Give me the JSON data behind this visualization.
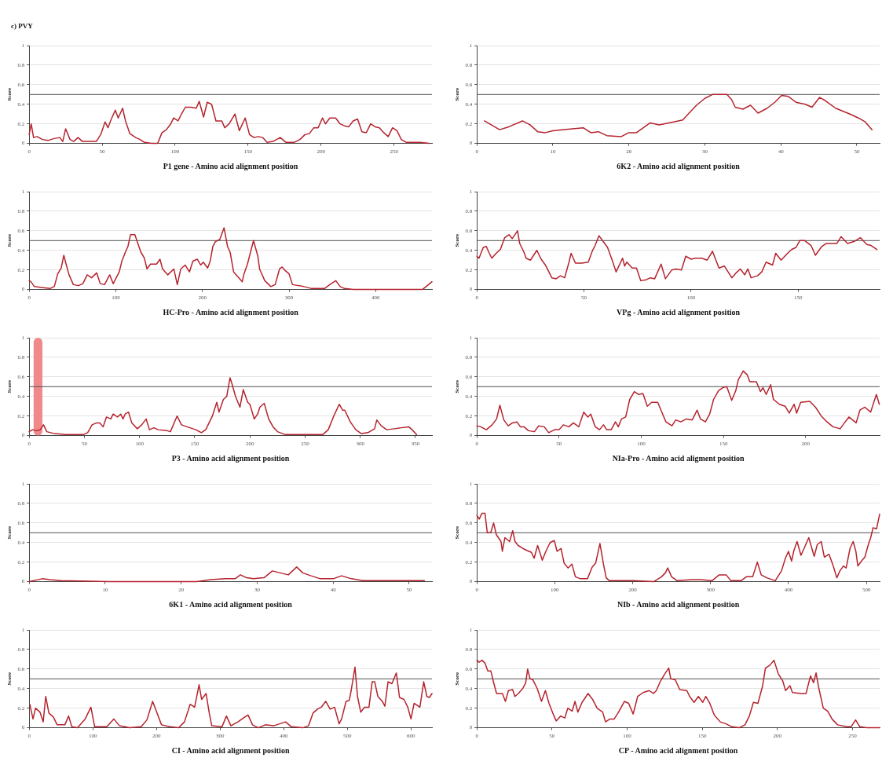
{
  "chart_data": [
    {
      "type": "line",
      "title": "c) PVY",
      "xlabel": "P1 gene - Amino acid alignment position",
      "ylabel": "Score",
      "color": "#b5232d",
      "grid": "y",
      "xlim": [
        0,
        276
      ],
      "xticks": [
        0,
        50,
        100,
        150,
        200,
        250
      ],
      "ylim": [
        0,
        1
      ],
      "yticks": [
        0,
        0.2,
        0.4,
        0.6,
        0.8,
        1
      ],
      "ref_lines": [
        {
          "axis": "y",
          "value": 0.5,
          "color": "#505050"
        }
      ],
      "x": [
        0,
        1.4,
        3,
        5.5,
        9,
        13,
        17,
        21,
        23,
        25,
        28,
        30.5,
        33.5,
        36.5,
        41,
        46,
        49,
        52,
        54,
        56,
        59,
        61,
        64,
        66,
        69,
        73,
        76,
        79,
        84,
        88,
        91,
        94,
        97,
        99,
        102,
        104,
        107,
        110.5,
        114.5,
        116.5,
        119.5,
        122,
        125,
        128,
        132,
        134,
        137,
        141,
        144,
        148,
        151,
        154,
        157,
        160,
        163,
        167,
        172,
        176,
        181.5,
        185.5,
        189,
        192,
        195,
        198,
        201,
        203,
        206,
        210,
        213,
        216,
        219,
        222,
        225,
        228,
        231,
        234,
        237,
        240,
        243,
        246,
        249,
        252,
        255,
        258.5,
        262,
        268,
        274
      ],
      "values": [
        0.09,
        0.2,
        0.06,
        0.07,
        0.04,
        0.03,
        0.05,
        0.06,
        0.02,
        0.15,
        0.04,
        0.02,
        0.06,
        0.02,
        0.02,
        0.02,
        0.09,
        0.22,
        0.16,
        0.24,
        0.34,
        0.26,
        0.36,
        0.23,
        0.1,
        0.06,
        0.04,
        0.01,
        0,
        0,
        0.11,
        0.14,
        0.2,
        0.26,
        0.23,
        0.29,
        0.37,
        0.37,
        0.36,
        0.43,
        0.27,
        0.42,
        0.4,
        0.23,
        0.23,
        0.16,
        0.2,
        0.3,
        0.13,
        0.26,
        0.09,
        0.06,
        0.07,
        0.06,
        0.01,
        0.02,
        0.06,
        0.01,
        0.01,
        0.04,
        0.09,
        0.1,
        0.16,
        0.16,
        0.26,
        0.2,
        0.26,
        0.26,
        0.2,
        0.18,
        0.17,
        0.23,
        0.25,
        0.12,
        0.11,
        0.2,
        0.17,
        0.16,
        0.11,
        0.07,
        0.16,
        0.13,
        0.04,
        0.01,
        0.01,
        0.01,
        0
      ]
    },
    {
      "type": "line",
      "xlabel": "6K2 - Amino acid alignment position",
      "ylabel": "Score",
      "color": "#b5232d",
      "grid": "y",
      "xlim": [
        0,
        53
      ],
      "xticks": [
        0,
        10,
        20,
        30,
        40,
        50
      ],
      "ylim": [
        0,
        1
      ],
      "yticks": [
        0,
        0.2,
        0.4,
        0.6,
        0.8,
        1
      ],
      "ref_lines": [
        {
          "axis": "y",
          "value": 0.5,
          "color": "#505050"
        }
      ],
      "x": [
        1,
        3,
        4.2,
        6,
        7,
        8,
        9,
        10,
        11.2,
        14,
        15,
        16,
        17.1,
        19,
        20,
        21,
        22.8,
        24,
        25.9,
        27.1,
        27.8,
        28.9,
        30,
        31,
        32.9,
        33.5,
        34,
        35,
        36,
        37,
        38.2,
        39.2,
        40.1,
        41,
        42,
        43.2,
        44.1,
        45.1,
        45.8,
        47.2,
        49.1,
        50.2,
        51.1,
        52
      ],
      "values": [
        0.23,
        0.14,
        0.17,
        0.23,
        0.19,
        0.12,
        0.11,
        0.13,
        0.14,
        0.16,
        0.11,
        0.12,
        0.08,
        0.07,
        0.11,
        0.11,
        0.21,
        0.19,
        0.22,
        0.24,
        0.3,
        0.39,
        0.46,
        0.5,
        0.5,
        0.45,
        0.37,
        0.35,
        0.39,
        0.31,
        0.36,
        0.42,
        0.49,
        0.48,
        0.42,
        0.4,
        0.37,
        0.47,
        0.44,
        0.36,
        0.3,
        0.26,
        0.22,
        0.14
      ]
    },
    {
      "type": "line",
      "xlabel": "HC-Pro - Amino acid alignment position",
      "ylabel": "Score",
      "color": "#b5232d",
      "grid": "y",
      "xlim": [
        0,
        465
      ],
      "xticks": [
        0,
        100,
        200,
        300,
        400
      ],
      "ylim": [
        0,
        1
      ],
      "yticks": [
        0,
        0.2,
        0.4,
        0.6,
        0.8,
        1
      ],
      "ref_lines": [
        {
          "axis": "y",
          "value": 0.5,
          "color": "#505050"
        }
      ],
      "x": [
        0,
        2,
        6,
        14,
        24,
        29,
        33,
        37,
        40,
        42,
        46,
        51,
        57,
        62,
        67,
        72,
        78,
        82,
        87,
        93,
        97,
        104,
        107,
        111,
        114,
        117,
        122,
        129,
        133,
        136,
        140,
        147,
        151,
        154,
        160,
        167,
        171,
        175,
        180,
        185,
        189,
        194,
        198,
        201,
        206,
        209,
        212,
        215,
        220,
        225,
        229,
        232,
        236,
        241,
        246,
        248,
        252,
        259,
        264,
        266,
        272,
        279,
        284,
        289,
        292,
        296,
        300,
        304,
        311,
        317,
        326,
        341,
        347,
        354,
        359,
        364,
        374,
        394,
        427,
        454,
        461,
        465
      ],
      "values": [
        0.09,
        0.08,
        0.03,
        0.02,
        0.01,
        0.03,
        0.16,
        0.22,
        0.35,
        0.28,
        0.15,
        0.05,
        0.04,
        0.06,
        0.15,
        0.12,
        0.17,
        0.06,
        0.05,
        0.15,
        0.06,
        0.18,
        0.29,
        0.38,
        0.44,
        0.56,
        0.56,
        0.38,
        0.32,
        0.21,
        0.26,
        0.26,
        0.31,
        0.21,
        0.15,
        0.21,
        0.05,
        0.21,
        0.25,
        0.18,
        0.29,
        0.31,
        0.25,
        0.28,
        0.22,
        0.29,
        0.44,
        0.49,
        0.51,
        0.63,
        0.44,
        0.38,
        0.18,
        0.13,
        0.08,
        0.16,
        0.26,
        0.5,
        0.34,
        0.21,
        0.09,
        0.03,
        0.05,
        0.21,
        0.23,
        0.19,
        0.16,
        0.05,
        0.04,
        0.03,
        0.01,
        0.01,
        0.05,
        0.09,
        0.03,
        0.01,
        0,
        0,
        0,
        0,
        0.05,
        0.08
      ]
    },
    {
      "type": "line",
      "xlabel": "VPg - Amino acid alignment position",
      "ylabel": "Score",
      "color": "#b5232d",
      "grid": "y",
      "xlim": [
        0,
        188
      ],
      "xticks": [
        0,
        50,
        100,
        150
      ],
      "ylim": [
        0,
        1
      ],
      "yticks": [
        0,
        0.2,
        0.4,
        0.6,
        0.8,
        1
      ],
      "ref_lines": [
        {
          "axis": "y",
          "value": 0.5,
          "color": "#505050"
        }
      ],
      "x": [
        0,
        1,
        3,
        4.4,
        5.8,
        7,
        9,
        11,
        13,
        15,
        16.5,
        19,
        20,
        22,
        23,
        25,
        28,
        30,
        32,
        35,
        37,
        39,
        41,
        43,
        44,
        46,
        49,
        52,
        54,
        55,
        57,
        59,
        61,
        63,
        65,
        68,
        69,
        70,
        72.5,
        74.5,
        76.5,
        79,
        81,
        83,
        86,
        88,
        91,
        93,
        95.5,
        97.5,
        100,
        102,
        105,
        107.5,
        110,
        113,
        115.5,
        119,
        121,
        123,
        125,
        126.5,
        128,
        131,
        133,
        135,
        138,
        139.5,
        142,
        145,
        147,
        149,
        150.7,
        153,
        156,
        158,
        161,
        163,
        168,
        170,
        173,
        176,
        179,
        182,
        184,
        186.7
      ],
      "values": [
        0.34,
        0.32,
        0.43,
        0.44,
        0.37,
        0.32,
        0.37,
        0.41,
        0.53,
        0.56,
        0.52,
        0.6,
        0.47,
        0.38,
        0.32,
        0.3,
        0.4,
        0.31,
        0.25,
        0.12,
        0.11,
        0.14,
        0.12,
        0.28,
        0.37,
        0.27,
        0.27,
        0.28,
        0.4,
        0.44,
        0.55,
        0.49,
        0.43,
        0.31,
        0.18,
        0.32,
        0.24,
        0.28,
        0.22,
        0.22,
        0.09,
        0.1,
        0.12,
        0.11,
        0.26,
        0.11,
        0.2,
        0.21,
        0.2,
        0.34,
        0.31,
        0.32,
        0.32,
        0.3,
        0.39,
        0.22,
        0.24,
        0.12,
        0.17,
        0.21,
        0.15,
        0.21,
        0.12,
        0.14,
        0.18,
        0.28,
        0.25,
        0.37,
        0.3,
        0.37,
        0.41,
        0.43,
        0.5,
        0.5,
        0.45,
        0.35,
        0.44,
        0.47,
        0.47,
        0.54,
        0.47,
        0.49,
        0.53,
        0.46,
        0.45,
        0.41
      ]
    },
    {
      "type": "line",
      "xlabel": "P3 - Amino acid alignment position",
      "ylabel": "Score",
      "color": "#b5232d",
      "grid": "y",
      "xlim": [
        0,
        365
      ],
      "xticks": [
        0,
        50,
        100,
        150,
        200,
        250,
        300,
        350
      ],
      "ylim": [
        0,
        1
      ],
      "yticks": [
        0,
        0.2,
        0.4,
        0.6,
        0.8,
        1
      ],
      "ref_lines": [
        {
          "axis": "y",
          "value": 0.5,
          "color": "#505050"
        }
      ],
      "bands": [
        {
          "axis": "x",
          "from": 4,
          "to": 12,
          "color": "#f08a8a"
        }
      ],
      "x": [
        0,
        3,
        7,
        10,
        13,
        16,
        23,
        33,
        49,
        53,
        57,
        61,
        64,
        67,
        70,
        74,
        76,
        80,
        83,
        85,
        87,
        90,
        93,
        98,
        102,
        106,
        109,
        113,
        117,
        125,
        128,
        134,
        138,
        143,
        151,
        156,
        160,
        166,
        170,
        172,
        176,
        179,
        182,
        184,
        187,
        191,
        194,
        198,
        200,
        204,
        207,
        209,
        213,
        217,
        221,
        225,
        232,
        247,
        266,
        271,
        276,
        281,
        284,
        286,
        291,
        296,
        301,
        307,
        313,
        315,
        319,
        324,
        331,
        337,
        344,
        347,
        351
      ],
      "values": [
        0.04,
        0.06,
        0.05,
        0.06,
        0.11,
        0.04,
        0.02,
        0.01,
        0.01,
        0.03,
        0.11,
        0.13,
        0.13,
        0.09,
        0.19,
        0.17,
        0.22,
        0.19,
        0.22,
        0.17,
        0.22,
        0.24,
        0.13,
        0.07,
        0.11,
        0.17,
        0.06,
        0.08,
        0.06,
        0.05,
        0.04,
        0.2,
        0.11,
        0.09,
        0.06,
        0.03,
        0.06,
        0.2,
        0.34,
        0.24,
        0.37,
        0.4,
        0.59,
        0.52,
        0.4,
        0.29,
        0.47,
        0.34,
        0.32,
        0.17,
        0.22,
        0.29,
        0.33,
        0.17,
        0.09,
        0.04,
        0.01,
        0.01,
        0.01,
        0.06,
        0.2,
        0.32,
        0.26,
        0.26,
        0.14,
        0.06,
        0.02,
        0.03,
        0.07,
        0.16,
        0.1,
        0.06,
        0.07,
        0.08,
        0.09,
        0.06,
        0.01
      ]
    },
    {
      "type": "line",
      "xlabel": "NIa-Pro - Amino acid aligment position",
      "ylabel": "Score",
      "color": "#b5232d",
      "grid": "y",
      "xlim": [
        0,
        245
      ],
      "xticks": [
        0,
        50,
        100,
        150,
        200
      ],
      "ylim": [
        0,
        1
      ],
      "yticks": [
        0,
        0.2,
        0.4,
        0.6,
        0.8,
        1
      ],
      "ref_lines": [
        {
          "axis": "y",
          "value": 0.5,
          "color": "#505050"
        }
      ],
      "x": [
        0,
        2.3,
        5.8,
        9.3,
        12,
        14,
        16.4,
        19,
        21.7,
        24.3,
        26.5,
        28.7,
        31.4,
        35,
        37.6,
        41,
        43.7,
        47.3,
        50,
        52.6,
        56,
        58.7,
        62,
        65,
        67.5,
        69.3,
        72,
        74.6,
        77,
        79,
        81.7,
        84.3,
        86,
        88,
        90.5,
        93,
        95.8,
        98.4,
        101,
        103.7,
        106.3,
        110,
        112.5,
        115,
        118.7,
        121,
        124,
        127.5,
        131,
        134,
        136,
        139,
        141.6,
        144,
        147,
        149.6,
        152,
        155,
        157.5,
        159,
        162,
        164.5,
        166,
        170,
        172.5,
        174,
        176,
        178.7,
        180.4,
        184,
        187.5,
        190,
        193,
        194.5,
        197,
        202.5,
        206,
        209.5,
        213,
        216.6,
        221,
        223.6,
        226.3,
        230.7,
        233,
        236,
        239.5,
        243,
        244.8
      ],
      "values": [
        0.1,
        0.09,
        0.06,
        0.11,
        0.17,
        0.31,
        0.16,
        0.1,
        0.13,
        0.14,
        0.09,
        0.09,
        0.05,
        0.04,
        0.1,
        0.09,
        0.03,
        0.06,
        0.06,
        0.11,
        0.09,
        0.13,
        0.09,
        0.24,
        0.19,
        0.22,
        0.09,
        0.06,
        0.11,
        0.06,
        0.06,
        0.14,
        0.09,
        0.17,
        0.19,
        0.37,
        0.45,
        0.42,
        0.43,
        0.3,
        0.34,
        0.34,
        0.24,
        0.14,
        0.1,
        0.16,
        0.14,
        0.17,
        0.16,
        0.26,
        0.17,
        0.14,
        0.22,
        0.37,
        0.46,
        0.49,
        0.5,
        0.36,
        0.46,
        0.57,
        0.66,
        0.62,
        0.55,
        0.55,
        0.45,
        0.49,
        0.42,
        0.52,
        0.37,
        0.32,
        0.3,
        0.23,
        0.32,
        0.23,
        0.34,
        0.35,
        0.29,
        0.2,
        0.14,
        0.09,
        0.07,
        0.13,
        0.19,
        0.13,
        0.26,
        0.29,
        0.24,
        0.42,
        0.32
      ]
    },
    {
      "type": "line",
      "xlabel": "6K1 - Amino acid alignment position",
      "ylabel": "Score",
      "color": "#b5232d",
      "grid": "y",
      "xlim": [
        0,
        53
      ],
      "xticks": [
        0,
        10,
        20,
        30,
        40,
        50
      ],
      "ylim": [
        0,
        1
      ],
      "yticks": [
        0,
        0.2,
        0.4,
        0.6,
        0.8,
        1
      ],
      "ref_lines": [
        {
          "axis": "y",
          "value": 0.5,
          "color": "#505050"
        }
      ],
      "x": [
        0,
        1.1,
        1.7,
        2.7,
        4.2,
        10.6,
        22,
        23.9,
        25.8,
        27.1,
        27.8,
        28.6,
        29.5,
        30.9,
        32,
        33,
        34.1,
        35.2,
        36,
        37.1,
        38.3,
        40,
        41.1,
        42.4,
        43.9,
        46.6,
        49.2,
        52
      ],
      "values": [
        0,
        0.02,
        0.03,
        0.02,
        0.01,
        0,
        0,
        0.02,
        0.03,
        0.03,
        0.07,
        0.04,
        0.03,
        0.04,
        0.11,
        0.09,
        0.07,
        0.15,
        0.09,
        0.06,
        0.03,
        0.03,
        0.06,
        0.03,
        0.01,
        0.01,
        0.01,
        0.01
      ]
    },
    {
      "type": "line",
      "xlabel": "NIb - Amino acid alignment position",
      "ylabel": "Score",
      "color": "#b5232d",
      "grid": "y",
      "xlim": [
        0,
        517
      ],
      "xticks": [
        0,
        100,
        200,
        300,
        400,
        500
      ],
      "ylim": [
        0,
        1
      ],
      "yticks": [
        0,
        0.2,
        0.4,
        0.6,
        0.8,
        1
      ],
      "ref_lines": [
        {
          "axis": "y",
          "value": 0.5,
          "color": "#505050"
        }
      ],
      "x": [
        0,
        3,
        6.7,
        10.4,
        13.4,
        17.8,
        21.5,
        25,
        31,
        32.7,
        36,
        42,
        46,
        49,
        53,
        59,
        64,
        70,
        73.5,
        78,
        84,
        88,
        94,
        99.4,
        103,
        108,
        112,
        117,
        122,
        126.5,
        133,
        142,
        148,
        152.5,
        158,
        162.5,
        166,
        170,
        201,
        227,
        237,
        242,
        245,
        250,
        257,
        276,
        287,
        302,
        311,
        320,
        326,
        339,
        346,
        354,
        360,
        365,
        372,
        383,
        391,
        396,
        400,
        404,
        407,
        411,
        416,
        420,
        426,
        430,
        433,
        437,
        442,
        446,
        452,
        457.5,
        462,
        466,
        470.5,
        474,
        479,
        483,
        486.5,
        489,
        494.5,
        498,
        502.5,
        505.5,
        508.5,
        513,
        517
      ],
      "values": [
        0.68,
        0.64,
        0.7,
        0.7,
        0.5,
        0.5,
        0.6,
        0.48,
        0.41,
        0.31,
        0.45,
        0.41,
        0.52,
        0.41,
        0.37,
        0.34,
        0.32,
        0.3,
        0.24,
        0.37,
        0.22,
        0.3,
        0.4,
        0.42,
        0.31,
        0.34,
        0.19,
        0.14,
        0.18,
        0.05,
        0.03,
        0.03,
        0.15,
        0.19,
        0.39,
        0.18,
        0.04,
        0.01,
        0.01,
        0,
        0.05,
        0.09,
        0.14,
        0.05,
        0.01,
        0.02,
        0.02,
        0.01,
        0.07,
        0.07,
        0.01,
        0.01,
        0.05,
        0.05,
        0.2,
        0.07,
        0.04,
        0.01,
        0.11,
        0.24,
        0.31,
        0.21,
        0.32,
        0.41,
        0.27,
        0.34,
        0.45,
        0.34,
        0.26,
        0.38,
        0.41,
        0.25,
        0.28,
        0.16,
        0.04,
        0.11,
        0.16,
        0.14,
        0.34,
        0.41,
        0.31,
        0.16,
        0.22,
        0.25,
        0.38,
        0.45,
        0.55,
        0.54,
        0.69
      ]
    },
    {
      "type": "line",
      "xlabel": "CI - Amino acid alignment position",
      "ylabel": "Score",
      "color": "#b5232d",
      "grid": "y",
      "xlim": [
        0,
        633
      ],
      "xticks": [
        0,
        100,
        200,
        300,
        400,
        500,
        600
      ],
      "ylim": [
        0,
        1
      ],
      "yticks": [
        0,
        0.2,
        0.4,
        0.6,
        0.8,
        1
      ],
      "ref_lines": [
        {
          "axis": "y",
          "value": 0.5,
          "color": "#505050"
        }
      ],
      "x": [
        1,
        6,
        10,
        17,
        22,
        26,
        31,
        38,
        44,
        56,
        62,
        67,
        76,
        88,
        97,
        103,
        122,
        133,
        142,
        158,
        176,
        185,
        194,
        201,
        208,
        221,
        235,
        244,
        253,
        260,
        267,
        271,
        278,
        283,
        287,
        303,
        310,
        317,
        328,
        339,
        344,
        351,
        360,
        371,
        384,
        403,
        412,
        430,
        439,
        446,
        453,
        459,
        466,
        473,
        480,
        487,
        491,
        498,
        503,
        506,
        512,
        516,
        521,
        527,
        534,
        539,
        543,
        548,
        555,
        559,
        564,
        570,
        577,
        582,
        589,
        595,
        600,
        605,
        614,
        620,
        625,
        629,
        633
      ],
      "values": [
        0.24,
        0.09,
        0.2,
        0.16,
        0.06,
        0.32,
        0.15,
        0.11,
        0.03,
        0.03,
        0.12,
        0.01,
        0,
        0.09,
        0.21,
        0.01,
        0.01,
        0.09,
        0.02,
        0,
        0.01,
        0.08,
        0.27,
        0.15,
        0.03,
        0.01,
        0,
        0.06,
        0.24,
        0.21,
        0.44,
        0.29,
        0.35,
        0.15,
        0.02,
        0.01,
        0.12,
        0.02,
        0.06,
        0.11,
        0.13,
        0.03,
        0,
        0.03,
        0.02,
        0.06,
        0.01,
        0,
        0.02,
        0.15,
        0.19,
        0.21,
        0.27,
        0.19,
        0.21,
        0.04,
        0.09,
        0.27,
        0.28,
        0.38,
        0.62,
        0.32,
        0.16,
        0.21,
        0.21,
        0.47,
        0.47,
        0.32,
        0.27,
        0.22,
        0.47,
        0.45,
        0.56,
        0.31,
        0.29,
        0.21,
        0.09,
        0.25,
        0.21,
        0.47,
        0.32,
        0.31,
        0.35
      ]
    },
    {
      "type": "line",
      "xlabel": "CP - Amino acid alignment position",
      "ylabel": "Score",
      "color": "#b5232d",
      "grid": "y",
      "xlim": [
        0,
        268
      ],
      "xticks": [
        0,
        50,
        100,
        150,
        200,
        250
      ],
      "ylim": [
        0,
        1
      ],
      "yticks": [
        0,
        0.2,
        0.4,
        0.6,
        0.8,
        1
      ],
      "ref_lines": [
        {
          "axis": "y",
          "value": 0.5,
          "color": "#505050"
        }
      ],
      "x": [
        0,
        1.5,
        3.5,
        5.4,
        7.3,
        9.3,
        11.2,
        13.1,
        17,
        19,
        21,
        23.8,
        25.3,
        27.6,
        30.5,
        32.5,
        33.8,
        35.4,
        37.3,
        40.2,
        43,
        45.6,
        48,
        50.8,
        52.8,
        55.7,
        58.5,
        60.5,
        63.4,
        65.3,
        67.2,
        70,
        74,
        77,
        80,
        83.7,
        85.6,
        88.5,
        91.4,
        94.3,
        98.2,
        101,
        104,
        107,
        110.7,
        114.6,
        117.5,
        119.4,
        122.3,
        125,
        127.7,
        129,
        132,
        135,
        139.7,
        141.6,
        144.5,
        147.4,
        150.3,
        152.3,
        155,
        158,
        162,
        165.8,
        169.7,
        174.5,
        178.4,
        181.3,
        184,
        187,
        190,
        192,
        195,
        197.7,
        200.6,
        203.5,
        205.4,
        208.3,
        210,
        216,
        219,
        222,
        224,
        225.7,
        227.6,
        230.5,
        233.4,
        236.3,
        240,
        246,
        249,
        252,
        254.8,
        259.6,
        268
      ],
      "values": [
        0.69,
        0.67,
        0.69,
        0.66,
        0.58,
        0.58,
        0.46,
        0.35,
        0.35,
        0.27,
        0.38,
        0.39,
        0.32,
        0.35,
        0.4,
        0.46,
        0.6,
        0.5,
        0.49,
        0.4,
        0.27,
        0.38,
        0.25,
        0.14,
        0.07,
        0.12,
        0.1,
        0.2,
        0.17,
        0.27,
        0.16,
        0.26,
        0.35,
        0.29,
        0.2,
        0.16,
        0.06,
        0.09,
        0.09,
        0.16,
        0.27,
        0.25,
        0.14,
        0.32,
        0.36,
        0.38,
        0.35,
        0.38,
        0.48,
        0.55,
        0.61,
        0.5,
        0.49,
        0.39,
        0.38,
        0.32,
        0.26,
        0.32,
        0.26,
        0.32,
        0.25,
        0.13,
        0.06,
        0.04,
        0.01,
        0,
        0.03,
        0.12,
        0.26,
        0.25,
        0.42,
        0.61,
        0.64,
        0.69,
        0.55,
        0.48,
        0.38,
        0.43,
        0.36,
        0.35,
        0.35,
        0.53,
        0.46,
        0.56,
        0.4,
        0.2,
        0.17,
        0.09,
        0.03,
        0.01,
        0.01,
        0.08,
        0.01,
        0,
        0
      ]
    }
  ]
}
